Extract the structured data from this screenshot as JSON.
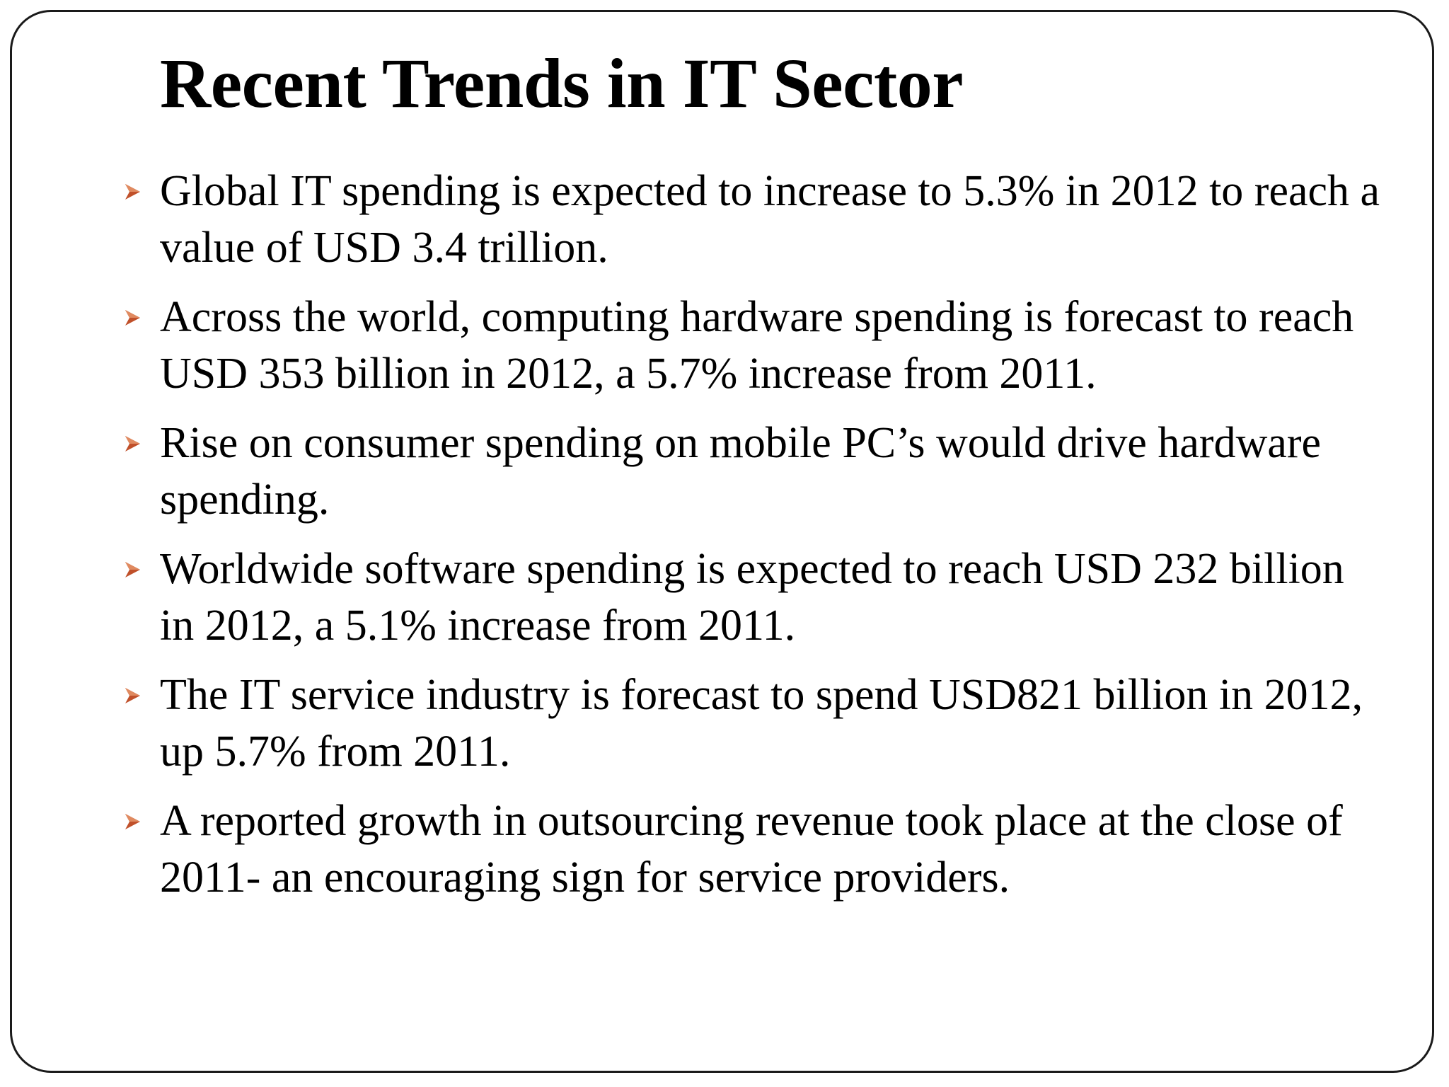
{
  "slide": {
    "title": "Recent Trends in IT Sector",
    "accent_color": "#c0502a",
    "bullet_icon": "arrowhead-bullet-icon",
    "bullets": [
      {
        "text": "Global IT spending is expected to increase to 5.3% in 2012 to reach a value of USD 3.4 trillion."
      },
      {
        "text": "Across the world, computing hardware spending is forecast to reach USD 353 billion in 2012, a 5.7% increase from 2011."
      },
      {
        "text": "Rise on consumer spending on mobile PC’s would drive hardware spending."
      },
      {
        "text": "Worldwide software spending is expected to reach USD 232 billion in 2012, a 5.1% increase from 2011."
      },
      {
        "text": "The IT service industry is forecast to spend USD821 billion in 2012, up 5.7% from 2011."
      },
      {
        "text": "A reported growth in outsourcing revenue took place at the close of 2011- an encouraging sign for service providers."
      }
    ]
  }
}
